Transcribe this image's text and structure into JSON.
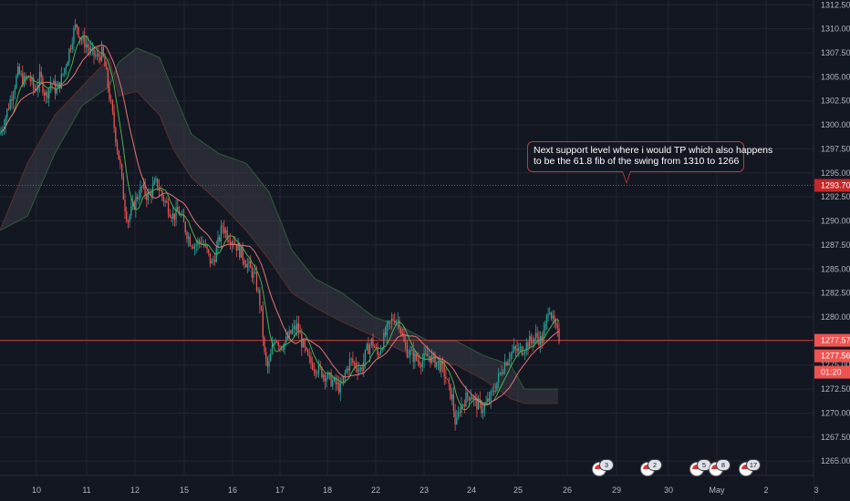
{
  "chart_data": {
    "type": "candlestick",
    "instrument_style": "dark theme price chart with Ichimoku cloud and two moving averages",
    "ylim": [
      1263.5,
      1313.0
    ],
    "y_ticks": [
      "1312.50",
      "1310.00",
      "1307.50",
      "1305.00",
      "1302.50",
      "1300.00",
      "1297.50",
      "1295.00",
      "1292.50",
      "1290.00",
      "1287.50",
      "1285.00",
      "1282.50",
      "1280.00",
      "1277.50",
      "1275.00",
      "1272.50",
      "1270.00",
      "1267.50",
      "1265.00"
    ],
    "x_ticks": [
      {
        "label": "10",
        "t": 40
      },
      {
        "label": "11",
        "t": 95
      },
      {
        "label": "12",
        "t": 148
      },
      {
        "label": "15",
        "t": 202
      },
      {
        "label": "16",
        "t": 255
      },
      {
        "label": "17",
        "t": 307
      },
      {
        "label": "18",
        "t": 359
      },
      {
        "label": "22",
        "t": 412
      },
      {
        "label": "23",
        "t": 465
      },
      {
        "label": "24",
        "t": 517
      },
      {
        "label": "25",
        "t": 568
      },
      {
        "label": "26",
        "t": 622
      },
      {
        "label": "29",
        "t": 676
      },
      {
        "label": "30",
        "t": 733
      },
      {
        "label": "May",
        "t": 786
      },
      {
        "label": "2",
        "t": 840
      },
      {
        "label": "3",
        "t": 895
      }
    ],
    "price_path": [
      [
        0,
        1299.0
      ],
      [
        8,
        1301.5
      ],
      [
        14,
        1303.5
      ],
      [
        20,
        1305.5
      ],
      [
        26,
        1304.5
      ],
      [
        32,
        1305.0
      ],
      [
        38,
        1303.5
      ],
      [
        44,
        1305.0
      ],
      [
        50,
        1303.0
      ],
      [
        56,
        1304.5
      ],
      [
        62,
        1303.5
      ],
      [
        68,
        1305.0
      ],
      [
        74,
        1307.0
      ],
      [
        80,
        1309.5
      ],
      [
        84,
        1310.5
      ],
      [
        88,
        1309.0
      ],
      [
        94,
        1308.5
      ],
      [
        100,
        1307.5
      ],
      [
        106,
        1307.0
      ],
      [
        112,
        1307.5
      ],
      [
        116,
        1305.5
      ],
      [
        120,
        1303.0
      ],
      [
        124,
        1300.5
      ],
      [
        128,
        1298.0
      ],
      [
        132,
        1295.5
      ],
      [
        136,
        1292.0
      ],
      [
        140,
        1290.0
      ],
      [
        144,
        1291.0
      ],
      [
        150,
        1292.5
      ],
      [
        156,
        1293.5
      ],
      [
        162,
        1292.5
      ],
      [
        168,
        1293.5
      ],
      [
        172,
        1294.0
      ],
      [
        178,
        1292.5
      ],
      [
        184,
        1291.5
      ],
      [
        190,
        1290.5
      ],
      [
        196,
        1291.0
      ],
      [
        202,
        1289.5
      ],
      [
        208,
        1288.0
      ],
      [
        214,
        1287.5
      ],
      [
        220,
        1288.0
      ],
      [
        226,
        1287.0
      ],
      [
        232,
        1285.5
      ],
      [
        236,
        1286.5
      ],
      [
        240,
        1288.0
      ],
      [
        244,
        1289.5
      ],
      [
        250,
        1288.5
      ],
      [
        256,
        1288.0
      ],
      [
        262,
        1287.0
      ],
      [
        268,
        1286.0
      ],
      [
        274,
        1285.0
      ],
      [
        280,
        1284.0
      ],
      [
        286,
        1281.0
      ],
      [
        290,
        1276.0
      ],
      [
        294,
        1274.5
      ],
      [
        298,
        1276.5
      ],
      [
        302,
        1278.0
      ],
      [
        308,
        1277.0
      ],
      [
        314,
        1277.5
      ],
      [
        320,
        1278.5
      ],
      [
        326,
        1279.0
      ],
      [
        332,
        1277.0
      ],
      [
        338,
        1275.5
      ],
      [
        344,
        1275.0
      ],
      [
        350,
        1274.5
      ],
      [
        356,
        1274.0
      ],
      [
        362,
        1273.5
      ],
      [
        368,
        1273.0
      ],
      [
        374,
        1272.5
      ],
      [
        378,
        1274.0
      ],
      [
        384,
        1275.5
      ],
      [
        390,
        1275.0
      ],
      [
        396,
        1274.5
      ],
      [
        402,
        1276.5
      ],
      [
        408,
        1277.5
      ],
      [
        414,
        1276.0
      ],
      [
        420,
        1277.5
      ],
      [
        426,
        1279.0
      ],
      [
        432,
        1280.0
      ],
      [
        438,
        1279.5
      ],
      [
        442,
        1277.5
      ],
      [
        446,
        1276.5
      ],
      [
        452,
        1276.0
      ],
      [
        458,
        1275.5
      ],
      [
        464,
        1275.5
      ],
      [
        470,
        1276.0
      ],
      [
        476,
        1275.5
      ],
      [
        482,
        1275.0
      ],
      [
        488,
        1274.0
      ],
      [
        492,
        1272.5
      ],
      [
        496,
        1271.5
      ],
      [
        500,
        1268.5
      ],
      [
        504,
        1270.5
      ],
      [
        510,
        1271.5
      ],
      [
        516,
        1272.0
      ],
      [
        522,
        1271.0
      ],
      [
        528,
        1270.5
      ],
      [
        534,
        1271.0
      ],
      [
        540,
        1272.0
      ],
      [
        546,
        1273.5
      ],
      [
        552,
        1275.0
      ],
      [
        558,
        1276.0
      ],
      [
        564,
        1276.5
      ],
      [
        570,
        1276.5
      ],
      [
        576,
        1277.0
      ],
      [
        582,
        1277.5
      ],
      [
        588,
        1278.0
      ],
      [
        594,
        1277.5
      ],
      [
        598,
        1279.0
      ],
      [
        602,
        1281.5
      ],
      [
        606,
        1279.5
      ],
      [
        610,
        1278.5
      ],
      [
        614,
        1277.6
      ]
    ],
    "ichimoku_cloud": [
      [
        0,
        1289.0
      ],
      [
        30,
        1290.5
      ],
      [
        60,
        1297.0
      ],
      [
        90,
        1302.0
      ],
      [
        120,
        1304.0
      ],
      [
        130,
        1306.5
      ],
      [
        150,
        1308.0
      ],
      [
        175,
        1307.0
      ],
      [
        190,
        1303.5
      ],
      [
        210,
        1299.0
      ],
      [
        240,
        1297.0
      ],
      [
        270,
        1296.0
      ],
      [
        295,
        1293.0
      ],
      [
        320,
        1287.0
      ],
      [
        345,
        1284.0
      ],
      [
        375,
        1282.5
      ],
      [
        410,
        1280.0
      ],
      [
        440,
        1279.0
      ],
      [
        470,
        1277.5
      ],
      [
        500,
        1277.5
      ],
      [
        530,
        1276.0
      ],
      [
        560,
        1275.0
      ],
      [
        575,
        1272.5
      ],
      [
        612,
        1272.5
      ]
    ],
    "ichimoku_cloud_lower": [
      [
        0,
        1289.0
      ],
      [
        30,
        1296.0
      ],
      [
        60,
        1301.0
      ],
      [
        90,
        1304.0
      ],
      [
        120,
        1307.0
      ],
      [
        130,
        1303.0
      ],
      [
        150,
        1303.5
      ],
      [
        175,
        1301.0
      ],
      [
        190,
        1297.5
      ],
      [
        210,
        1294.5
      ],
      [
        240,
        1292.0
      ],
      [
        270,
        1289.0
      ],
      [
        295,
        1286.0
      ],
      [
        320,
        1282.5
      ],
      [
        345,
        1281.0
      ],
      [
        375,
        1279.5
      ],
      [
        410,
        1278.0
      ],
      [
        440,
        1276.5
      ],
      [
        470,
        1275.5
      ],
      [
        500,
        1275.0
      ],
      [
        530,
        1273.5
      ],
      [
        560,
        1271.5
      ],
      [
        575,
        1271.0
      ],
      [
        612,
        1271.0
      ]
    ],
    "horizontal_lines": [
      {
        "price": 1293.7,
        "style": "dotted",
        "color": "#c03a3a"
      },
      {
        "price": 1277.57,
        "style": "solid",
        "color": "#c03a3a"
      }
    ],
    "price_tags": [
      {
        "label": "1293.70",
        "price": 1293.7,
        "bg": "#c62828"
      },
      {
        "label": "1277.57",
        "price": 1277.57,
        "bg": "#ef5350"
      },
      {
        "label": "1277.56",
        "price": 1275.95,
        "bg": "#ef5350"
      },
      {
        "label": "01:20",
        "price": 1274.25,
        "bg": "#ef5350"
      }
    ],
    "annotation": {
      "lines": [
        "Next support level where i would TP which also happens",
        "to be the 61.8 fib of the swing from 1310 to 1266"
      ]
    },
    "events": [
      {
        "t": 657,
        "count": "3"
      },
      {
        "t": 710,
        "count": "2"
      },
      {
        "t": 764,
        "count": "5"
      },
      {
        "t": 785,
        "count": "8"
      },
      {
        "t": 818,
        "count": "17"
      }
    ],
    "colors": {
      "background": "#131722",
      "grid": "#232632",
      "up": "#26a69a",
      "down": "#ef5350",
      "ma_fast": "#4caf50",
      "ma_slow": "#e57373",
      "cloud_fill": "#3a3d47",
      "axis_text": "#b2b5be"
    }
  }
}
